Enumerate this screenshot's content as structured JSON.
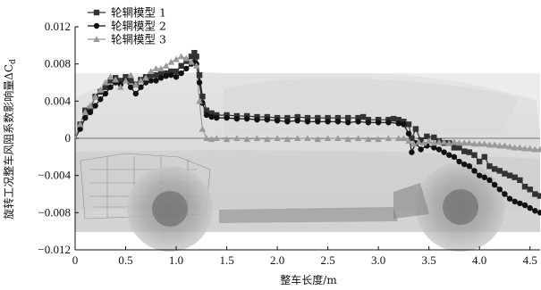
{
  "chart_data": {
    "type": "line",
    "xlabel": "整车长度/m",
    "ylabel": "旋转工况整车风阻系数影响量ΔC",
    "ylabel_sub": "d",
    "xlim": [
      0,
      4.6
    ],
    "ylim": [
      -0.012,
      0.012
    ],
    "xticks": [
      0,
      0.5,
      1.0,
      1.5,
      2.0,
      2.5,
      3.0,
      3.5,
      4.0,
      4.5
    ],
    "xtick_labels": [
      "0",
      "0.5",
      "1.0",
      "1.5",
      "2.0",
      "2.5",
      "3.0",
      "3.5",
      "4.0",
      "4.5"
    ],
    "yticks": [
      -0.012,
      -0.008,
      -0.004,
      0,
      0.004,
      0.008,
      0.012
    ],
    "ytick_labels": [
      "−0.012",
      "−0.008",
      "−0.004",
      "0",
      "0.004",
      "0.008",
      "0.012"
    ],
    "legend_position": "top-left",
    "series": [
      {
        "name": "轮辋模型 1",
        "marker": "square",
        "color": "#333333",
        "points": [
          [
            0,
            0
          ],
          [
            0.05,
            0.0015
          ],
          [
            0.1,
            0.003
          ],
          [
            0.15,
            0.0032
          ],
          [
            0.2,
            0.0045
          ],
          [
            0.25,
            0.005
          ],
          [
            0.3,
            0.0055
          ],
          [
            0.35,
            0.0062
          ],
          [
            0.4,
            0.0065
          ],
          [
            0.45,
            0.0062
          ],
          [
            0.5,
            0.0066
          ],
          [
            0.55,
            0.0062
          ],
          [
            0.6,
            0.0058
          ],
          [
            0.65,
            0.0063
          ],
          [
            0.7,
            0.0066
          ],
          [
            0.75,
            0.0068
          ],
          [
            0.8,
            0.0068
          ],
          [
            0.85,
            0.007
          ],
          [
            0.9,
            0.007
          ],
          [
            0.95,
            0.0072
          ],
          [
            1.0,
            0.0072
          ],
          [
            1.05,
            0.0078
          ],
          [
            1.1,
            0.0083
          ],
          [
            1.15,
            0.0088
          ],
          [
            1.18,
            0.0092
          ],
          [
            1.2,
            0.0088
          ],
          [
            1.23,
            0.0068
          ],
          [
            1.26,
            0.0045
          ],
          [
            1.3,
            0.003
          ],
          [
            1.35,
            0.0027
          ],
          [
            1.4,
            0.0025
          ],
          [
            1.5,
            0.0025
          ],
          [
            1.6,
            0.0024
          ],
          [
            1.7,
            0.0024
          ],
          [
            1.8,
            0.0023
          ],
          [
            1.9,
            0.0023
          ],
          [
            2.0,
            0.0022
          ],
          [
            2.1,
            0.0022
          ],
          [
            2.2,
            0.0023
          ],
          [
            2.3,
            0.0022
          ],
          [
            2.4,
            0.0022
          ],
          [
            2.5,
            0.0022
          ],
          [
            2.6,
            0.0022
          ],
          [
            2.7,
            0.0022
          ],
          [
            2.8,
            0.0022
          ],
          [
            2.85,
            0.0023
          ],
          [
            2.9,
            0.002
          ],
          [
            3.0,
            0.002
          ],
          [
            3.1,
            0.002
          ],
          [
            3.15,
            0.0021
          ],
          [
            3.2,
            0.002
          ],
          [
            3.25,
            0.0018
          ],
          [
            3.3,
            0.0015
          ],
          [
            3.33,
            0
          ],
          [
            3.37,
            0.001
          ],
          [
            3.42,
            -0.0002
          ],
          [
            3.48,
            0.0002
          ],
          [
            3.55,
            0.0001
          ],
          [
            3.6,
            -0.0003
          ],
          [
            3.65,
            -0.0005
          ],
          [
            3.7,
            -0.0005
          ],
          [
            3.75,
            -0.001
          ],
          [
            3.8,
            -0.001
          ],
          [
            3.85,
            -0.0014
          ],
          [
            3.9,
            -0.0015
          ],
          [
            3.95,
            -0.0018
          ],
          [
            4.0,
            -0.0025
          ],
          [
            4.05,
            -0.002
          ],
          [
            4.1,
            -0.003
          ],
          [
            4.15,
            -0.0033
          ],
          [
            4.2,
            -0.0035
          ],
          [
            4.25,
            -0.0038
          ],
          [
            4.3,
            -0.004
          ],
          [
            4.35,
            -0.0042
          ],
          [
            4.4,
            -0.0045
          ],
          [
            4.45,
            -0.0052
          ],
          [
            4.5,
            -0.0055
          ],
          [
            4.55,
            -0.006
          ],
          [
            4.6,
            -0.0062
          ]
        ]
      },
      {
        "name": "轮辋模型 2",
        "marker": "circle",
        "color": "#111111",
        "points": [
          [
            0,
            0
          ],
          [
            0.05,
            0.001
          ],
          [
            0.1,
            0.0022
          ],
          [
            0.15,
            0.0028
          ],
          [
            0.2,
            0.0035
          ],
          [
            0.25,
            0.0042
          ],
          [
            0.3,
            0.0048
          ],
          [
            0.35,
            0.0055
          ],
          [
            0.4,
            0.006
          ],
          [
            0.45,
            0.0058
          ],
          [
            0.5,
            0.0062
          ],
          [
            0.55,
            0.0055
          ],
          [
            0.6,
            0.0048
          ],
          [
            0.65,
            0.0055
          ],
          [
            0.7,
            0.006
          ],
          [
            0.75,
            0.0062
          ],
          [
            0.8,
            0.0062
          ],
          [
            0.85,
            0.0065
          ],
          [
            0.9,
            0.0067
          ],
          [
            0.95,
            0.0068
          ],
          [
            1.0,
            0.0066
          ],
          [
            1.05,
            0.007
          ],
          [
            1.1,
            0.0075
          ],
          [
            1.15,
            0.008
          ],
          [
            1.18,
            0.0082
          ],
          [
            1.2,
            0.008
          ],
          [
            1.23,
            0.006
          ],
          [
            1.26,
            0.0038
          ],
          [
            1.3,
            0.0025
          ],
          [
            1.35,
            0.0023
          ],
          [
            1.4,
            0.0022
          ],
          [
            1.5,
            0.0022
          ],
          [
            1.6,
            0.0021
          ],
          [
            1.7,
            0.0021
          ],
          [
            1.8,
            0.002
          ],
          [
            1.9,
            0.002
          ],
          [
            2.0,
            0.0019
          ],
          [
            2.1,
            0.0018
          ],
          [
            2.2,
            0.0019
          ],
          [
            2.3,
            0.0018
          ],
          [
            2.4,
            0.0018
          ],
          [
            2.5,
            0.0018
          ],
          [
            2.6,
            0.0018
          ],
          [
            2.7,
            0.0017
          ],
          [
            2.8,
            0.0018
          ],
          [
            2.9,
            0.0017
          ],
          [
            3.0,
            0.0017
          ],
          [
            3.1,
            0.0017
          ],
          [
            3.2,
            0.0016
          ],
          [
            3.25,
            0.0015
          ],
          [
            3.3,
            0.0005
          ],
          [
            3.33,
            -0.0015
          ],
          [
            3.37,
            -0.0005
          ],
          [
            3.42,
            -0.0012
          ],
          [
            3.48,
            -0.0008
          ],
          [
            3.55,
            -0.001
          ],
          [
            3.6,
            -0.0012
          ],
          [
            3.65,
            -0.0015
          ],
          [
            3.7,
            -0.0018
          ],
          [
            3.75,
            -0.002
          ],
          [
            3.8,
            -0.0025
          ],
          [
            3.85,
            -0.0028
          ],
          [
            3.9,
            -0.003
          ],
          [
            3.95,
            -0.0035
          ],
          [
            4.0,
            -0.004
          ],
          [
            4.05,
            -0.0042
          ],
          [
            4.1,
            -0.0045
          ],
          [
            4.15,
            -0.005
          ],
          [
            4.2,
            -0.0055
          ],
          [
            4.25,
            -0.006
          ],
          [
            4.3,
            -0.0065
          ],
          [
            4.35,
            -0.0068
          ],
          [
            4.4,
            -0.007
          ],
          [
            4.45,
            -0.0072
          ],
          [
            4.5,
            -0.0075
          ],
          [
            4.55,
            -0.0078
          ],
          [
            4.6,
            -0.008
          ]
        ]
      },
      {
        "name": "轮辋模型 3",
        "marker": "triangle",
        "color": "#9a9a9a",
        "points": [
          [
            0,
            0
          ],
          [
            0.05,
            0.0015
          ],
          [
            0.1,
            0.0028
          ],
          [
            0.15,
            0.0035
          ],
          [
            0.2,
            0.0045
          ],
          [
            0.25,
            0.0052
          ],
          [
            0.3,
            0.006
          ],
          [
            0.35,
            0.0066
          ],
          [
            0.4,
            0.0063
          ],
          [
            0.45,
            0.0055
          ],
          [
            0.5,
            0.0062
          ],
          [
            0.55,
            0.0068
          ],
          [
            0.6,
            0.0058
          ],
          [
            0.65,
            0.0062
          ],
          [
            0.7,
            0.0065
          ],
          [
            0.75,
            0.0072
          ],
          [
            0.8,
            0.0075
          ],
          [
            0.85,
            0.0075
          ],
          [
            0.9,
            0.0078
          ],
          [
            0.95,
            0.0082
          ],
          [
            1.0,
            0.0085
          ],
          [
            1.05,
            0.0088
          ],
          [
            1.1,
            0.0086
          ],
          [
            1.15,
            0.0082
          ],
          [
            1.2,
            0.0078
          ],
          [
            1.23,
            0.004
          ],
          [
            1.26,
            0.001
          ],
          [
            1.3,
            0
          ],
          [
            1.35,
            -0.0001
          ],
          [
            1.4,
            0
          ],
          [
            1.5,
            -0.0001
          ],
          [
            1.6,
            0
          ],
          [
            1.7,
            -0.0001
          ],
          [
            1.8,
            0
          ],
          [
            1.9,
            -0.0001
          ],
          [
            2.0,
            0
          ],
          [
            2.1,
            -0.0001
          ],
          [
            2.2,
            0
          ],
          [
            2.3,
            0
          ],
          [
            2.4,
            -0.0001
          ],
          [
            2.5,
            0
          ],
          [
            2.6,
            0
          ],
          [
            2.7,
            -0.0001
          ],
          [
            2.8,
            0
          ],
          [
            2.9,
            -0.0001
          ],
          [
            3.0,
            -0.0001
          ],
          [
            3.1,
            0
          ],
          [
            3.2,
            0
          ],
          [
            3.25,
            0
          ],
          [
            3.3,
            -0.0003
          ],
          [
            3.35,
            -0.0006
          ],
          [
            3.4,
            -0.0004
          ],
          [
            3.45,
            -0.0005
          ],
          [
            3.5,
            -0.0003
          ],
          [
            3.55,
            -0.0005
          ],
          [
            3.6,
            -0.0004
          ],
          [
            3.65,
            -0.0004
          ],
          [
            3.7,
            -0.0005
          ],
          [
            3.75,
            -0.0004
          ],
          [
            3.8,
            -0.0005
          ],
          [
            3.85,
            -0.0005
          ],
          [
            3.9,
            -0.0005
          ],
          [
            3.95,
            -0.0006
          ],
          [
            4.0,
            -0.0006
          ],
          [
            4.05,
            -0.0006
          ],
          [
            4.1,
            -0.0007
          ],
          [
            4.15,
            -0.0007
          ],
          [
            4.2,
            -0.0008
          ],
          [
            4.25,
            -0.0008
          ],
          [
            4.3,
            -0.0009
          ],
          [
            4.35,
            -0.001
          ],
          [
            4.4,
            -0.001
          ],
          [
            4.45,
            -0.0011
          ],
          [
            4.5,
            -0.0011
          ],
          [
            4.55,
            -0.0012
          ],
          [
            4.6,
            -0.0012
          ]
        ]
      }
    ]
  }
}
